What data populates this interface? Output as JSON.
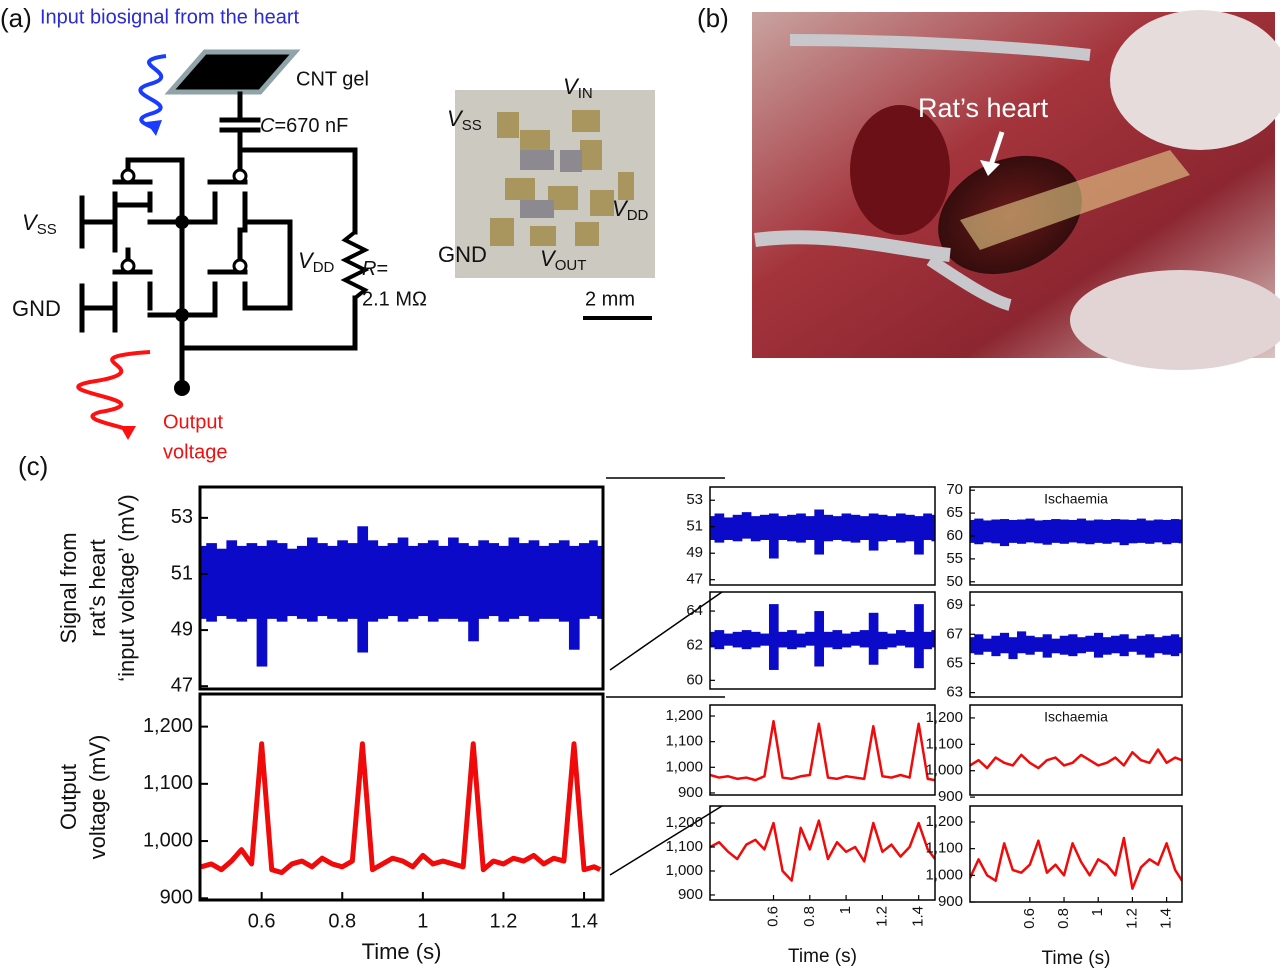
{
  "panel_labels": [
    "(a)",
    "(b)",
    "(c)"
  ],
  "panel_a": {
    "title": "Input biosignal from the heart",
    "cnt_label": "CNT gel",
    "capacitor": {
      "symbol": "C",
      "value": "=670 nF"
    },
    "vss": {
      "main": "V",
      "sub": "SS"
    },
    "gnd": "GND",
    "vdd": {
      "main": "V",
      "sub": "DD"
    },
    "resistor": {
      "symbol": "R",
      "value": "=",
      "magnitude": "2.1 MΩ"
    },
    "output": [
      "Output",
      "voltage"
    ],
    "inset": {
      "vss": {
        "main": "V",
        "sub": "SS"
      },
      "vin": {
        "main": "V",
        "sub": "IN"
      },
      "vdd": {
        "main": "V",
        "sub": "DD"
      },
      "gnd": "GND",
      "vout": {
        "main": "V",
        "sub": "OUT"
      },
      "scale": "2 mm"
    }
  },
  "panel_b": {
    "label": "Rat’s heart"
  },
  "chart_data": [
    {
      "type": "band",
      "ylabel": [
        "Signal from",
        "rat’s heart",
        "‘input voltage’ (mV)"
      ],
      "xlim": [
        0.447,
        1.447
      ],
      "ylim": [
        46.9,
        54.1
      ],
      "yticks": [
        47,
        49,
        51,
        53
      ],
      "x": [
        0.45,
        0.475,
        0.5,
        0.525,
        0.55,
        0.575,
        0.6,
        0.625,
        0.65,
        0.675,
        0.7,
        0.725,
        0.75,
        0.775,
        0.8,
        0.825,
        0.85,
        0.875,
        0.9,
        0.925,
        0.95,
        0.975,
        1,
        1.025,
        1.05,
        1.075,
        1.1,
        1.125,
        1.15,
        1.175,
        1.2,
        1.225,
        1.25,
        1.275,
        1.3,
        1.325,
        1.35,
        1.375,
        1.4,
        1.425,
        1.44
      ],
      "series": [
        {
          "color": "#0a0ac8",
          "values": [
            52.0,
            52.1,
            51.9,
            52.2,
            52.0,
            52.1,
            52.0,
            52.2,
            52.1,
            51.9,
            52.0,
            52.3,
            52.1,
            52.0,
            52.2,
            52.1,
            52.7,
            52.2,
            52.0,
            52.1,
            52.3,
            52.0,
            52.1,
            52.2,
            52.0,
            52.3,
            52.1,
            52.0,
            52.2,
            52.1,
            52.0,
            52.3,
            52.1,
            52.2,
            52.0,
            52.1,
            52.2,
            52.0,
            52.1,
            52.2,
            52.0
          ]
        },
        {
          "color": "#0a0ac8",
          "values": [
            49.4,
            49.3,
            49.5,
            49.4,
            49.3,
            49.4,
            47.7,
            49.4,
            49.3,
            49.5,
            49.4,
            49.3,
            49.5,
            49.4,
            49.3,
            49.4,
            48.2,
            49.3,
            49.4,
            49.5,
            49.3,
            49.4,
            49.5,
            49.3,
            49.4,
            49.4,
            49.3,
            48.6,
            49.4,
            49.5,
            49.3,
            49.4,
            49.5,
            49.3,
            49.4,
            49.4,
            49.3,
            48.3,
            49.4,
            49.5,
            49.4
          ]
        }
      ]
    },
    {
      "type": "line",
      "ylabel": [
        "Output",
        "voltage (mV)"
      ],
      "xlabel": "Time (s)",
      "xlim": [
        0.447,
        1.447
      ],
      "ylim": [
        897,
        1257
      ],
      "xticks": [
        0.6,
        0.8,
        1,
        1.2,
        1.4
      ],
      "yticks": [
        {
          "value": 900,
          "label": "900"
        },
        {
          "value": 1000,
          "label": "1,000"
        },
        {
          "value": 1100,
          "label": "1,100"
        },
        {
          "value": 1200,
          "label": "1,200"
        }
      ],
      "x": [
        0.45,
        0.475,
        0.5,
        0.525,
        0.55,
        0.575,
        0.6,
        0.625,
        0.65,
        0.675,
        0.7,
        0.725,
        0.75,
        0.775,
        0.8,
        0.825,
        0.85,
        0.875,
        0.9,
        0.925,
        0.95,
        0.975,
        1,
        1.025,
        1.05,
        1.075,
        1.1,
        1.125,
        1.15,
        1.175,
        1.2,
        1.225,
        1.25,
        1.275,
        1.3,
        1.325,
        1.35,
        1.375,
        1.4,
        1.425,
        1.44
      ],
      "series": [
        {
          "color": "#f00a0a",
          "values": [
            955,
            960,
            950,
            965,
            985,
            960,
            1170,
            950,
            945,
            960,
            965,
            955,
            970,
            960,
            955,
            965,
            1170,
            950,
            960,
            970,
            965,
            955,
            975,
            960,
            965,
            960,
            955,
            1170,
            950,
            965,
            960,
            970,
            965,
            975,
            960,
            970,
            965,
            1170,
            950,
            955,
            950
          ]
        }
      ]
    },
    {
      "type": "band",
      "xlim": [
        0.25,
        1.49
      ],
      "ylim": [
        46.6,
        54
      ],
      "yticks": [
        47,
        49,
        51,
        53
      ],
      "x": [
        0.25,
        0.3,
        0.35,
        0.4,
        0.45,
        0.5,
        0.55,
        0.6,
        0.65,
        0.7,
        0.75,
        0.8,
        0.85,
        0.9,
        0.95,
        1,
        1.05,
        1.1,
        1.15,
        1.2,
        1.25,
        1.3,
        1.35,
        1.4,
        1.45,
        1.49
      ],
      "series": [
        {
          "color": "#0a0ac8",
          "values": [
            51.8,
            52.0,
            51.7,
            51.9,
            52.1,
            51.8,
            51.9,
            52.0,
            51.8,
            51.9,
            52.0,
            51.8,
            52.3,
            51.9,
            51.8,
            52.0,
            51.9,
            51.8,
            52.0,
            51.9,
            51.8,
            52.0,
            51.9,
            51.8,
            52.0,
            51.9
          ]
        },
        {
          "color": "#0a0ac8",
          "values": [
            50.0,
            49.8,
            50.0,
            49.9,
            50.1,
            49.9,
            50.0,
            48.6,
            50.0,
            49.9,
            49.8,
            50.0,
            48.9,
            49.9,
            50.0,
            49.9,
            49.8,
            50.0,
            49.2,
            49.9,
            50.0,
            49.8,
            49.9,
            48.9,
            50.0,
            49.9
          ]
        }
      ]
    },
    {
      "type": "band",
      "xlim": [
        0.25,
        1.49
      ],
      "ylim": [
        59.5,
        65.1
      ],
      "yticks": [
        60,
        62,
        64
      ],
      "x": [
        0.25,
        0.3,
        0.35,
        0.4,
        0.45,
        0.5,
        0.55,
        0.6,
        0.65,
        0.7,
        0.75,
        0.8,
        0.85,
        0.9,
        0.95,
        1,
        1.05,
        1.1,
        1.15,
        1.2,
        1.25,
        1.3,
        1.35,
        1.4,
        1.45,
        1.49
      ],
      "series": [
        {
          "color": "#0a0ac8",
          "values": [
            62.8,
            62.9,
            62.7,
            62.8,
            62.9,
            62.8,
            62.7,
            64.4,
            62.8,
            62.9,
            62.7,
            62.8,
            64.0,
            62.8,
            62.9,
            62.7,
            62.8,
            62.9,
            63.9,
            62.8,
            62.7,
            62.9,
            62.8,
            64.4,
            62.8,
            62.9
          ]
        },
        {
          "color": "#0a0ac8",
          "values": [
            61.9,
            61.8,
            62.0,
            61.9,
            61.8,
            61.9,
            62.0,
            60.6,
            61.9,
            61.8,
            61.9,
            62.0,
            60.8,
            61.9,
            61.8,
            61.9,
            62.0,
            61.9,
            60.9,
            61.8,
            61.9,
            62.0,
            61.9,
            60.7,
            61.8,
            61.9
          ]
        }
      ]
    },
    {
      "type": "line",
      "xlim": [
        0.25,
        1.49
      ],
      "ylim": [
        892,
        1243
      ],
      "yticks": [
        {
          "value": 900,
          "label": "900"
        },
        {
          "value": 1000,
          "label": "1,000"
        },
        {
          "value": 1100,
          "label": "1,100"
        },
        {
          "value": 1200,
          "label": "1,200"
        }
      ],
      "x": [
        0.25,
        0.3,
        0.35,
        0.4,
        0.45,
        0.5,
        0.55,
        0.6,
        0.65,
        0.7,
        0.75,
        0.8,
        0.85,
        0.9,
        0.95,
        1,
        1.05,
        1.1,
        1.15,
        1.2,
        1.25,
        1.3,
        1.35,
        1.4,
        1.45,
        1.49
      ],
      "series": [
        {
          "color": "#f00a0a",
          "values": [
            970,
            960,
            965,
            955,
            960,
            950,
            965,
            1180,
            960,
            955,
            965,
            970,
            1170,
            960,
            955,
            965,
            960,
            955,
            1160,
            965,
            960,
            970,
            960,
            1170,
            955,
            950
          ]
        }
      ]
    },
    {
      "type": "line",
      "xlabel": "Time (s)",
      "xlim": [
        0.25,
        1.49
      ],
      "ylim": [
        879,
        1271
      ],
      "xticks": [
        0.6,
        0.8,
        1,
        1.2,
        1.4
      ],
      "yticks": [
        {
          "value": 900,
          "label": "900"
        },
        {
          "value": 1000,
          "label": "1,000"
        },
        {
          "value": 1100,
          "label": "1,100"
        },
        {
          "value": 1200,
          "label": "1,200"
        }
      ],
      "x": [
        0.25,
        0.3,
        0.35,
        0.4,
        0.45,
        0.5,
        0.55,
        0.6,
        0.65,
        0.7,
        0.75,
        0.8,
        0.85,
        0.9,
        0.95,
        1,
        1.05,
        1.1,
        1.15,
        1.2,
        1.25,
        1.3,
        1.35,
        1.4,
        1.45,
        1.49
      ],
      "series": [
        {
          "color": "#f00a0a",
          "values": [
            1100,
            1120,
            1080,
            1050,
            1110,
            1130,
            1090,
            1200,
            1000,
            960,
            1180,
            1090,
            1210,
            1050,
            1120,
            1080,
            1100,
            1040,
            1200,
            1080,
            1110,
            1060,
            1100,
            1200,
            1090,
            1050
          ]
        }
      ]
    },
    {
      "type": "band",
      "annotation": "Ischaemia",
      "xlim": [
        0.25,
        1.49
      ],
      "ylim": [
        49.3,
        70.7
      ],
      "yticks": [
        50,
        55,
        60,
        65,
        70
      ],
      "x": [
        0.25,
        0.3,
        0.35,
        0.4,
        0.45,
        0.5,
        0.55,
        0.6,
        0.65,
        0.7,
        0.75,
        0.8,
        0.85,
        0.9,
        0.95,
        1,
        1.05,
        1.1,
        1.15,
        1.2,
        1.25,
        1.3,
        1.35,
        1.4,
        1.45,
        1.49
      ],
      "series": [
        {
          "color": "#0a0ac8",
          "values": [
            63.5,
            63.8,
            63.4,
            63.6,
            63.7,
            63.5,
            63.6,
            63.8,
            63.4,
            63.5,
            63.7,
            63.6,
            63.5,
            63.8,
            63.4,
            63.6,
            63.5,
            63.7,
            63.6,
            63.5,
            63.8,
            63.4,
            63.6,
            63.5,
            63.7,
            63.6
          ]
        },
        {
          "color": "#0a0ac8",
          "values": [
            58.5,
            58.2,
            58.6,
            58.4,
            57.8,
            58.5,
            58.3,
            58.6,
            58.4,
            58.1,
            58.5,
            58.3,
            58.6,
            58.4,
            58.2,
            58.5,
            58.3,
            58.6,
            58.0,
            58.4,
            58.5,
            58.3,
            58.6,
            58.2,
            58.5,
            58.4
          ]
        }
      ]
    },
    {
      "type": "band",
      "xlim": [
        0.25,
        1.49
      ],
      "ylim": [
        62.7,
        69.9
      ],
      "yticks": [
        63,
        65,
        67,
        69
      ],
      "x": [
        0.25,
        0.3,
        0.35,
        0.4,
        0.45,
        0.5,
        0.55,
        0.6,
        0.65,
        0.7,
        0.75,
        0.8,
        0.85,
        0.9,
        0.95,
        1,
        1.05,
        1.1,
        1.15,
        1.2,
        1.25,
        1.3,
        1.35,
        1.4,
        1.45,
        1.49
      ],
      "series": [
        {
          "color": "#0a0ac8",
          "values": [
            66.8,
            67.0,
            66.7,
            66.9,
            67.1,
            66.8,
            67.2,
            66.9,
            66.8,
            67.0,
            66.7,
            66.9,
            67.0,
            66.8,
            66.9,
            67.1,
            66.8,
            66.9,
            67.0,
            66.7,
            66.9,
            67.0,
            66.8,
            66.9,
            67.0,
            66.8
          ]
        },
        {
          "color": "#0a0ac8",
          "values": [
            65.7,
            65.6,
            65.8,
            65.5,
            65.7,
            65.3,
            65.7,
            65.6,
            65.8,
            65.4,
            65.7,
            65.6,
            65.5,
            65.7,
            65.8,
            65.4,
            65.6,
            65.7,
            65.5,
            65.8,
            65.6,
            65.4,
            65.7,
            65.6,
            65.5,
            65.7
          ]
        }
      ]
    },
    {
      "type": "line",
      "annotation": "Ischaemia",
      "xlim": [
        0.25,
        1.49
      ],
      "ylim": [
        908,
        1249
      ],
      "yticks": [
        {
          "value": 900,
          "label": "900"
        },
        {
          "value": 1000,
          "label": "1,000"
        },
        {
          "value": 1100,
          "label": "1,100"
        },
        {
          "value": 1200,
          "label": "1,200"
        }
      ],
      "x": [
        0.25,
        0.3,
        0.35,
        0.4,
        0.45,
        0.5,
        0.55,
        0.6,
        0.65,
        0.7,
        0.75,
        0.8,
        0.85,
        0.9,
        0.95,
        1,
        1.05,
        1.1,
        1.15,
        1.2,
        1.25,
        1.3,
        1.35,
        1.4,
        1.45,
        1.49
      ],
      "series": [
        {
          "color": "#f00a0a",
          "values": [
            1020,
            1040,
            1010,
            1050,
            1030,
            1020,
            1060,
            1030,
            1010,
            1040,
            1050,
            1020,
            1030,
            1060,
            1040,
            1020,
            1030,
            1050,
            1020,
            1070,
            1040,
            1030,
            1080,
            1030,
            1050,
            1040
          ]
        }
      ]
    },
    {
      "type": "line",
      "xlabel": "Time (s)",
      "xlim": [
        0.25,
        1.49
      ],
      "ylim": [
        900,
        1260
      ],
      "xticks": [
        0.6,
        0.8,
        1,
        1.2,
        1.4
      ],
      "yticks": [
        {
          "value": 900,
          "label": "900"
        },
        {
          "value": 1000,
          "label": "1,000"
        },
        {
          "value": 1100,
          "label": "1,100"
        },
        {
          "value": 1200,
          "label": "1,200"
        }
      ],
      "x": [
        0.25,
        0.3,
        0.35,
        0.4,
        0.45,
        0.5,
        0.55,
        0.6,
        0.65,
        0.7,
        0.75,
        0.8,
        0.85,
        0.9,
        0.95,
        1,
        1.05,
        1.1,
        1.15,
        1.2,
        1.25,
        1.3,
        1.35,
        1.4,
        1.45,
        1.49
      ],
      "series": [
        {
          "color": "#f00a0a",
          "values": [
            990,
            1060,
            1000,
            980,
            1120,
            1020,
            1010,
            1040,
            1130,
            1010,
            1040,
            1000,
            1120,
            1050,
            1000,
            1060,
            1040,
            1000,
            1140,
            950,
            1030,
            1060,
            1040,
            1120,
            1020,
            980
          ]
        }
      ]
    }
  ]
}
